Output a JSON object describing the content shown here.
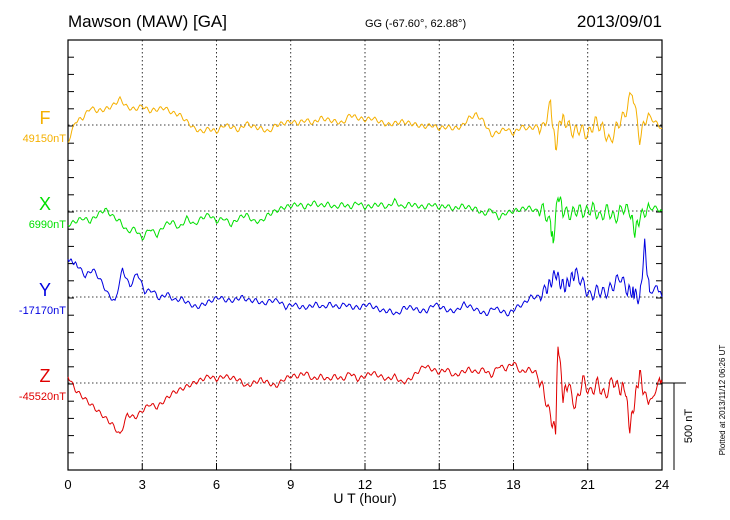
{
  "header": {
    "station": "Mawson (MAW)  [GA]",
    "coords": "GG (-67.60°,  62.88°)",
    "date": "2013/09/01"
  },
  "side_note": "Plotted at 2013/11/12 06:26 UT",
  "scale_label": "500 nT",
  "chart_data": {
    "type": "line",
    "title": "Mawson (MAW)  [GA]",
    "xlabel": "U T (hour)",
    "xlim": [
      0,
      24
    ],
    "xticks": [
      0,
      3,
      6,
      9,
      12,
      15,
      18,
      21,
      24
    ],
    "scale_bar_nT": 500,
    "series": [
      {
        "name": "F",
        "baseline_label": "49150nT",
        "color": "#f5b000",
        "x": [
          0,
          0.3,
          0.6,
          0.9,
          1.2,
          1.5,
          1.8,
          2.1,
          2.4,
          2.7,
          3,
          3.3,
          3.6,
          3.9,
          4.2,
          4.5,
          4.8,
          5.1,
          5.4,
          5.7,
          6,
          6.3,
          6.6,
          6.9,
          7.2,
          7.5,
          7.8,
          8.1,
          8.4,
          8.7,
          9,
          9.3,
          9.6,
          9.9,
          10.2,
          10.5,
          10.8,
          11.1,
          11.4,
          11.7,
          12,
          12.3,
          12.6,
          12.9,
          13.2,
          13.5,
          13.8,
          14.1,
          14.4,
          14.7,
          15,
          15.3,
          15.6,
          15.9,
          16.2,
          16.5,
          16.8,
          17.1,
          17.4,
          17.7,
          18,
          18.3,
          18.6,
          18.9,
          19.2,
          19.5,
          19.7,
          19.9,
          20.1,
          20.4,
          20.7,
          21,
          21.3,
          21.6,
          21.9,
          22.2,
          22.5,
          22.8,
          23.1,
          23.4,
          23.7,
          24
        ],
        "values": [
          -100,
          20,
          40,
          100,
          80,
          90,
          110,
          150,
          100,
          90,
          110,
          80,
          90,
          100,
          70,
          60,
          20,
          -20,
          -40,
          -20,
          -40,
          0,
          -10,
          -30,
          10,
          -10,
          -20,
          -40,
          0,
          10,
          20,
          10,
          30,
          10,
          40,
          30,
          20,
          10,
          60,
          40,
          30,
          40,
          20,
          0,
          10,
          20,
          10,
          0,
          -10,
          0,
          -20,
          -10,
          -20,
          -10,
          40,
          60,
          20,
          -60,
          -40,
          -20,
          -50,
          -10,
          -20,
          -10,
          -20,
          120,
          -140,
          40,
          20,
          -40,
          -20,
          -60,
          20,
          -20,
          -100,
          0,
          60,
          200,
          -80,
          60,
          20,
          -20
        ]
      },
      {
        "name": "X",
        "baseline_label": "6990nT",
        "color": "#00e000",
        "x": [
          0,
          0.3,
          0.6,
          0.9,
          1.2,
          1.5,
          1.8,
          2.1,
          2.4,
          2.7,
          3,
          3.3,
          3.6,
          3.9,
          4.2,
          4.5,
          4.8,
          5.1,
          5.4,
          5.7,
          6,
          6.3,
          6.6,
          6.9,
          7.2,
          7.5,
          7.8,
          8.1,
          8.4,
          8.7,
          9,
          9.3,
          9.6,
          9.9,
          10.2,
          10.5,
          10.8,
          11.1,
          11.4,
          11.7,
          12,
          12.3,
          12.6,
          12.9,
          13.2,
          13.5,
          13.8,
          14.1,
          14.4,
          14.7,
          15,
          15.3,
          15.6,
          15.9,
          16.2,
          16.5,
          16.8,
          17.1,
          17.4,
          17.7,
          18,
          18.3,
          18.6,
          18.9,
          19.2,
          19.5,
          19.6,
          19.8,
          20,
          20.3,
          20.6,
          20.9,
          21.2,
          21.5,
          21.8,
          22.1,
          22.4,
          22.7,
          22.9,
          23.1,
          23.4,
          23.7,
          24
        ],
        "values": [
          -80,
          -60,
          -40,
          -60,
          -20,
          10,
          -30,
          -60,
          -120,
          -100,
          -160,
          -100,
          -140,
          -80,
          -60,
          -100,
          -40,
          -80,
          -40,
          -20,
          -60,
          -40,
          -80,
          -40,
          -20,
          -60,
          -60,
          -20,
          0,
          20,
          30,
          40,
          20,
          50,
          30,
          40,
          20,
          40,
          20,
          50,
          20,
          30,
          40,
          20,
          60,
          20,
          40,
          30,
          20,
          40,
          20,
          30,
          10,
          30,
          20,
          10,
          -20,
          10,
          -40,
          -10,
          0,
          10,
          20,
          0,
          10,
          -80,
          -180,
          100,
          0,
          -20,
          10,
          -10,
          20,
          -40,
          10,
          -50,
          20,
          0,
          -120,
          -40,
          10,
          20,
          0
        ]
      },
      {
        "name": "Y",
        "baseline_label": "-17170nT",
        "color": "#0000e0",
        "x": [
          0,
          0.2,
          0.4,
          0.7,
          1,
          1.3,
          1.6,
          1.9,
          2.2,
          2.5,
          2.8,
          3.1,
          3.4,
          3.7,
          4,
          4.3,
          4.6,
          4.9,
          5.2,
          5.5,
          5.8,
          6.1,
          6.4,
          6.7,
          7,
          7.3,
          7.6,
          7.9,
          8.2,
          8.5,
          8.8,
          9.1,
          9.4,
          9.7,
          10,
          10.3,
          10.6,
          10.9,
          11.2,
          11.5,
          11.8,
          12.1,
          12.4,
          12.7,
          13,
          13.3,
          13.6,
          13.9,
          14.2,
          14.5,
          14.8,
          15.1,
          15.4,
          15.7,
          16,
          16.3,
          16.6,
          16.9,
          17.2,
          17.5,
          17.8,
          18.1,
          18.4,
          18.7,
          19,
          19.3,
          19.5,
          19.7,
          19.9,
          20.1,
          20.3,
          20.5,
          20.8,
          21.1,
          21.4,
          21.7,
          22,
          22.3,
          22.6,
          22.8,
          22.9,
          23.1,
          23.3,
          23.5,
          23.8,
          24
        ],
        "values": [
          220,
          200,
          180,
          120,
          160,
          100,
          20,
          -30,
          160,
          60,
          140,
          30,
          40,
          -10,
          20,
          -20,
          -10,
          -40,
          -60,
          -40,
          -20,
          0,
          -20,
          -20,
          0,
          -20,
          -20,
          -40,
          -20,
          -20,
          -60,
          -40,
          -60,
          -60,
          -40,
          -60,
          -40,
          -60,
          -40,
          -60,
          -60,
          -40,
          -60,
          -80,
          -80,
          -100,
          -60,
          -60,
          -80,
          -80,
          -40,
          -60,
          -80,
          -80,
          -40,
          -60,
          -80,
          -100,
          -60,
          -80,
          -100,
          -60,
          -40,
          0,
          0,
          40,
          80,
          140,
          80,
          60,
          100,
          140,
          80,
          0,
          40,
          20,
          60,
          120,
          40,
          30,
          20,
          -20,
          300,
          20,
          60,
          0
        ]
      },
      {
        "name": "Z",
        "baseline_label": "-45520nT",
        "color": "#e00000",
        "x": [
          0,
          0.3,
          0.6,
          0.9,
          1.2,
          1.5,
          1.8,
          2.1,
          2.4,
          2.7,
          3,
          3.3,
          3.6,
          3.9,
          4.2,
          4.5,
          4.8,
          5.1,
          5.4,
          5.7,
          6,
          6.3,
          6.6,
          6.9,
          7.2,
          7.5,
          7.8,
          8.1,
          8.4,
          8.7,
          9,
          9.3,
          9.6,
          9.9,
          10.2,
          10.5,
          10.8,
          11.1,
          11.4,
          11.7,
          12,
          12.3,
          12.6,
          12.9,
          13.2,
          13.5,
          13.8,
          14.1,
          14.4,
          14.7,
          15,
          15.3,
          15.6,
          15.9,
          16.2,
          16.5,
          16.8,
          17.1,
          17.4,
          17.7,
          18,
          18.3,
          18.6,
          18.9,
          19.2,
          19.5,
          19.7,
          19.8,
          20,
          20.2,
          20.5,
          20.8,
          21.1,
          21.4,
          21.7,
          22,
          22.3,
          22.5,
          22.7,
          22.9,
          23.1,
          23.3,
          23.6,
          23.9,
          24
        ],
        "values": [
          40,
          -40,
          -80,
          -120,
          -160,
          -200,
          -240,
          -300,
          -180,
          -200,
          -160,
          -120,
          -140,
          -100,
          -60,
          -40,
          -20,
          0,
          20,
          40,
          20,
          40,
          30,
          20,
          -20,
          0,
          20,
          0,
          -20,
          20,
          40,
          40,
          60,
          20,
          40,
          20,
          40,
          20,
          60,
          20,
          40,
          60,
          40,
          20,
          40,
          0,
          20,
          60,
          100,
          80,
          60,
          80,
          40,
          60,
          80,
          60,
          80,
          40,
          100,
          80,
          120,
          60,
          80,
          60,
          -40,
          -200,
          -280,
          240,
          -80,
          0,
          -140,
          20,
          -60,
          0,
          -80,
          20,
          -40,
          -20,
          -260,
          -100,
          60,
          -80,
          -100,
          20,
          0
        ]
      }
    ]
  }
}
